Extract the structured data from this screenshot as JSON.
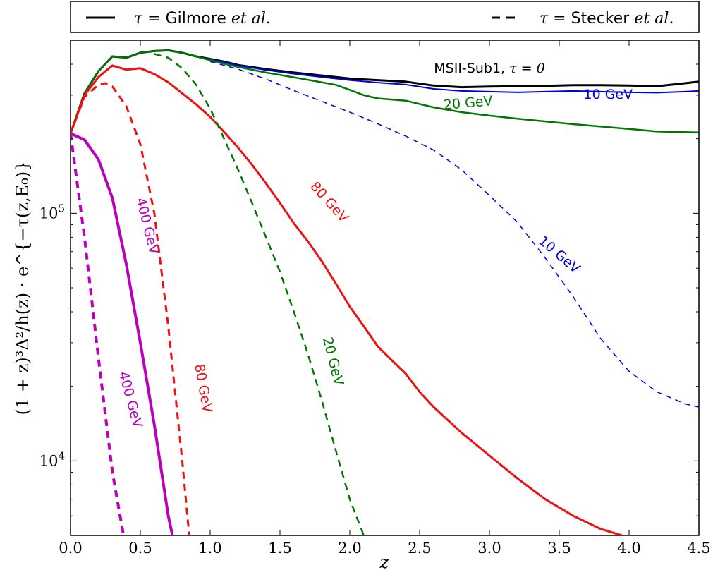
{
  "chart_data": {
    "type": "line",
    "xlabel": "z",
    "ylabel": "(1 + z)³Δ²/h(z) · e^{−τ(z,E₀)}",
    "xlim": [
      0.0,
      4.5
    ],
    "ylim": [
      5000,
      500000
    ],
    "yscale": "log",
    "xticks": [
      "0.0",
      "0.5",
      "1.0",
      "1.5",
      "2.0",
      "2.5",
      "3.0",
      "3.5",
      "4.0",
      "4.5"
    ],
    "yticks": [
      {
        "base": "10",
        "exp": "4",
        "value": 10000
      },
      {
        "base": "10",
        "exp": "5",
        "value": 100000
      }
    ],
    "legend": {
      "position": "top, outside plot",
      "entries": [
        {
          "style": "solid",
          "prefix": "τ = ",
          "name": "Gilmore",
          "suffix": " et al."
        },
        {
          "style": "dashed",
          "prefix": "τ = ",
          "name": "Stecker",
          "suffix": " et al."
        }
      ]
    },
    "colors": {
      "tau0": "#000000",
      "e10": "#0000dd",
      "e20": "#007700",
      "e80": "#ee1111",
      "e400": "#bb00bb"
    },
    "series": [
      {
        "model": "none",
        "energy": "tau0",
        "dash": false,
        "width": 3,
        "x": [
          0,
          0.1,
          0.2,
          0.3,
          0.4,
          0.5,
          0.6,
          0.7,
          0.8,
          0.9,
          1.0,
          1.1,
          1.2,
          1.4,
          1.6,
          1.8,
          2.0,
          2.2,
          2.4,
          2.6,
          2.8,
          3.0,
          3.2,
          3.4,
          3.6,
          3.8,
          4.0,
          4.2,
          4.4,
          4.5
        ],
        "y": [
          210000,
          305000,
          375000,
          430000,
          425000,
          445000,
          452000,
          455000,
          445000,
          430000,
          420000,
          410000,
          397000,
          382000,
          370000,
          360000,
          350000,
          345000,
          340000,
          328000,
          323000,
          325000,
          326000,
          327000,
          329000,
          329000,
          328000,
          326000,
          335000,
          340000
        ]
      },
      {
        "model": "Gilmore",
        "energy": "e10",
        "dash": false,
        "width": 2,
        "x": [
          0,
          0.1,
          0.2,
          0.3,
          0.4,
          0.5,
          0.6,
          0.7,
          0.8,
          0.9,
          1.0,
          1.1,
          1.2,
          1.4,
          1.6,
          1.8,
          2.0,
          2.2,
          2.4,
          2.6,
          2.8,
          3.0,
          3.2,
          3.4,
          3.6,
          3.8,
          4.0,
          4.2,
          4.4,
          4.5
        ],
        "y": [
          210000,
          305000,
          375000,
          430000,
          425000,
          445000,
          452000,
          455000,
          445000,
          430000,
          418000,
          408000,
          395000,
          379000,
          366000,
          355000,
          345000,
          337000,
          331000,
          318000,
          312000,
          310000,
          308000,
          310000,
          312000,
          310000,
          308000,
          307000,
          310000,
          312000
        ]
      },
      {
        "model": "Gilmore",
        "energy": "e20",
        "dash": false,
        "width": 2.5,
        "x": [
          0,
          0.1,
          0.2,
          0.3,
          0.4,
          0.5,
          0.6,
          0.7,
          0.8,
          0.9,
          1.0,
          1.1,
          1.2,
          1.4,
          1.6,
          1.8,
          1.9,
          2.0,
          2.1,
          2.2,
          2.4,
          2.6,
          2.8,
          3.0,
          3.2,
          3.4,
          3.6,
          3.8,
          4.0,
          4.2,
          4.5
        ],
        "y": [
          210000,
          305000,
          375000,
          430000,
          425000,
          445000,
          452000,
          455000,
          445000,
          430000,
          415000,
          402000,
          390000,
          370000,
          354000,
          338000,
          330000,
          315000,
          300000,
          291000,
          285000,
          268000,
          256000,
          248000,
          241000,
          235000,
          229000,
          224000,
          219000,
          214000,
          212000
        ]
      },
      {
        "model": "Gilmore",
        "energy": "e80",
        "dash": false,
        "width": 3,
        "x": [
          0,
          0.1,
          0.2,
          0.3,
          0.4,
          0.5,
          0.6,
          0.7,
          0.8,
          0.9,
          1.0,
          1.1,
          1.2,
          1.3,
          1.4,
          1.5,
          1.6,
          1.7,
          1.8,
          1.9,
          2.0,
          2.1,
          2.2,
          2.3,
          2.4,
          2.5,
          2.6,
          2.8,
          3.0,
          3.2,
          3.4,
          3.6,
          3.8,
          3.95
        ],
        "y": [
          210000,
          300000,
          355000,
          395000,
          380000,
          385000,
          365000,
          338000,
          305000,
          275000,
          245000,
          213000,
          184000,
          157000,
          132000,
          110000,
          91000,
          77000,
          64000,
          52000,
          42000,
          35000,
          29000,
          25500,
          22500,
          19000,
          16500,
          13000,
          10500,
          8500,
          7000,
          6000,
          5300,
          5000
        ]
      },
      {
        "model": "Gilmore",
        "energy": "e400",
        "dash": false,
        "width": 4,
        "x": [
          0,
          0.1,
          0.2,
          0.3,
          0.4,
          0.5,
          0.6,
          0.7,
          0.73
        ],
        "y": [
          210000,
          198000,
          165000,
          115000,
          62000,
          30000,
          14000,
          6000,
          5000
        ]
      },
      {
        "model": "Stecker",
        "energy": "e10",
        "dash": true,
        "width": 1.5,
        "x": [
          1.0,
          1.2,
          1.4,
          1.6,
          1.8,
          2.0,
          2.2,
          2.4,
          2.6,
          2.8,
          3.0,
          3.2,
          3.4,
          3.6,
          3.8,
          4.0,
          4.2,
          4.4,
          4.5
        ],
        "y": [
          410000,
          382000,
          348000,
          313000,
          283000,
          256000,
          230000,
          205000,
          180000,
          150000,
          118000,
          92000,
          66000,
          46000,
          31000,
          23000,
          19000,
          17000,
          16500
        ]
      },
      {
        "model": "Stecker",
        "energy": "e20",
        "dash": true,
        "width": 2.5,
        "x": [
          0.6,
          0.7,
          0.8,
          0.9,
          1.0,
          1.1,
          1.2,
          1.3,
          1.4,
          1.5,
          1.6,
          1.7,
          1.8,
          1.9,
          2.0,
          2.1
        ],
        "y": [
          440000,
          425000,
          385000,
          330000,
          265000,
          200000,
          150000,
          110000,
          80000,
          58000,
          40000,
          27000,
          17500,
          11000,
          7000,
          5000
        ]
      },
      {
        "model": "Stecker",
        "energy": "e80",
        "dash": true,
        "width": 3,
        "x": [
          0,
          0.1,
          0.2,
          0.25,
          0.3,
          0.4,
          0.5,
          0.6,
          0.7,
          0.8,
          0.85
        ],
        "y": [
          210000,
          295000,
          330000,
          335000,
          325000,
          270000,
          190000,
          100000,
          35000,
          10000,
          5000
        ]
      },
      {
        "model": "Stecker",
        "energy": "e400",
        "dash": true,
        "width": 4,
        "x": [
          0,
          0.1,
          0.2,
          0.3,
          0.38
        ],
        "y": [
          210000,
          80000,
          26000,
          9000,
          5000
        ]
      }
    ],
    "annotations": [
      {
        "text": "MSII-Sub1, ",
        "math": "τ = 0",
        "color": "tau0",
        "x": 3.0,
        "y": 370000,
        "angle": 0,
        "size": 22
      },
      {
        "text": "10 GeV",
        "color": "e10",
        "x": 3.85,
        "y": 290000,
        "angle": 0
      },
      {
        "text": "20 GeV",
        "color": "e20",
        "x": 2.85,
        "y": 268000,
        "angle": -5
      },
      {
        "text": "80 GeV",
        "color": "e80",
        "x": 1.83,
        "y": 108000,
        "angle": 48
      },
      {
        "text": "10 GeV",
        "color": "e10",
        "x": 3.48,
        "y": 66000,
        "angle": 40
      },
      {
        "text": "400 GeV",
        "color": "e400",
        "x": 0.52,
        "y": 88000,
        "angle": 76
      },
      {
        "text": "20 GeV",
        "color": "e20",
        "x": 1.85,
        "y": 25000,
        "angle": 76
      },
      {
        "text": "80 GeV",
        "color": "e80",
        "x": 0.92,
        "y": 19500,
        "angle": 80
      },
      {
        "text": "400 GeV",
        "color": "e400",
        "x": 0.4,
        "y": 17500,
        "angle": 75
      }
    ]
  }
}
